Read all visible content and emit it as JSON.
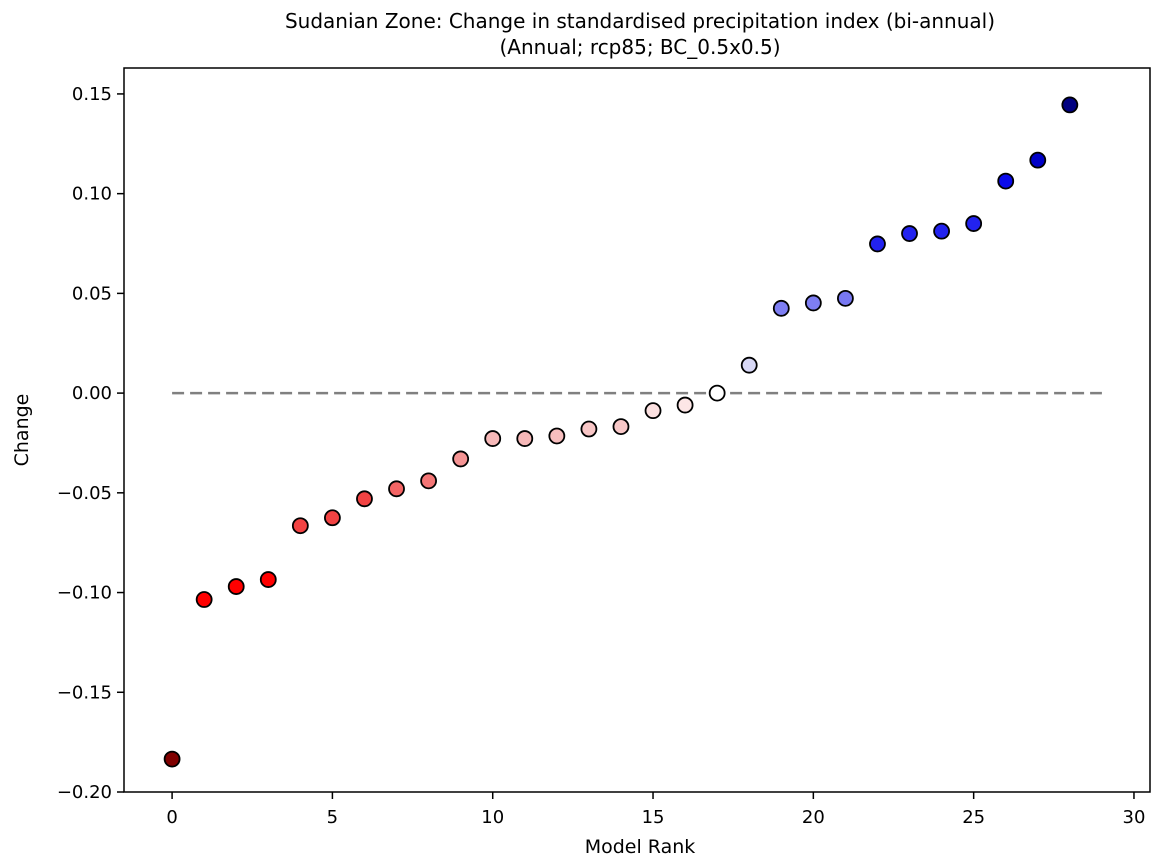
{
  "chart_data": {
    "type": "scatter",
    "title": "Sudanian Zone: Change in standardised precipitation index (bi-annual)",
    "subtitle": "(Annual; rcp85; BC_0.5x0.5)",
    "xlabel": "Model Rank",
    "ylabel": "Change",
    "xlim": [
      -1.5,
      30.5
    ],
    "ylim": [
      -0.2,
      0.163
    ],
    "xticks": [
      0,
      5,
      10,
      15,
      20,
      25,
      30
    ],
    "xtick_labels": [
      "0",
      "5",
      "10",
      "15",
      "20",
      "25",
      "30"
    ],
    "yticks": [
      -0.2,
      -0.15,
      -0.1,
      -0.05,
      0.0,
      0.05,
      0.1,
      0.15
    ],
    "ytick_labels": [
      "−0.20",
      "−0.15",
      "−0.10",
      "−0.05",
      "0.00",
      "0.05",
      "0.10",
      "0.15"
    ],
    "grid": false,
    "reference_line": {
      "y": 0.0,
      "x_start": 0,
      "x_end": 29,
      "style": "dashed",
      "color": "#808080"
    },
    "x": [
      0,
      1,
      2,
      3,
      4,
      5,
      6,
      7,
      8,
      9,
      10,
      11,
      12,
      13,
      14,
      15,
      16,
      17,
      18,
      19,
      20,
      21,
      22,
      23,
      24,
      25,
      26,
      27,
      28
    ],
    "y": [
      -0.1835,
      -0.1035,
      -0.097,
      -0.0935,
      -0.0665,
      -0.0625,
      -0.053,
      -0.048,
      -0.044,
      -0.033,
      -0.0228,
      -0.0228,
      -0.0215,
      -0.018,
      -0.0168,
      -0.0088,
      -0.006,
      0.0,
      0.014,
      0.0425,
      0.0452,
      0.0475,
      0.0748,
      0.08,
      0.0812,
      0.085,
      0.1063,
      0.1168,
      0.1445
    ],
    "colors": [
      "#800000",
      "#ff0000",
      "#ff0000",
      "#ff0000",
      "#f24343",
      "#f24343",
      "#f24343",
      "#f46565",
      "#f47676",
      "#f59494",
      "#f6b8b8",
      "#f6b8b8",
      "#f7bebe",
      "#f8c6c6",
      "#f8c8c8",
      "#fbe0e0",
      "#fde6e6",
      "#ffffff",
      "#d8d8f6",
      "#7e7ef2",
      "#7e7ef2",
      "#7878f2",
      "#2222ef",
      "#2222ef",
      "#2222ef",
      "#2222ef",
      "#0a0aeb",
      "#0000c8",
      "#000080"
    ]
  }
}
